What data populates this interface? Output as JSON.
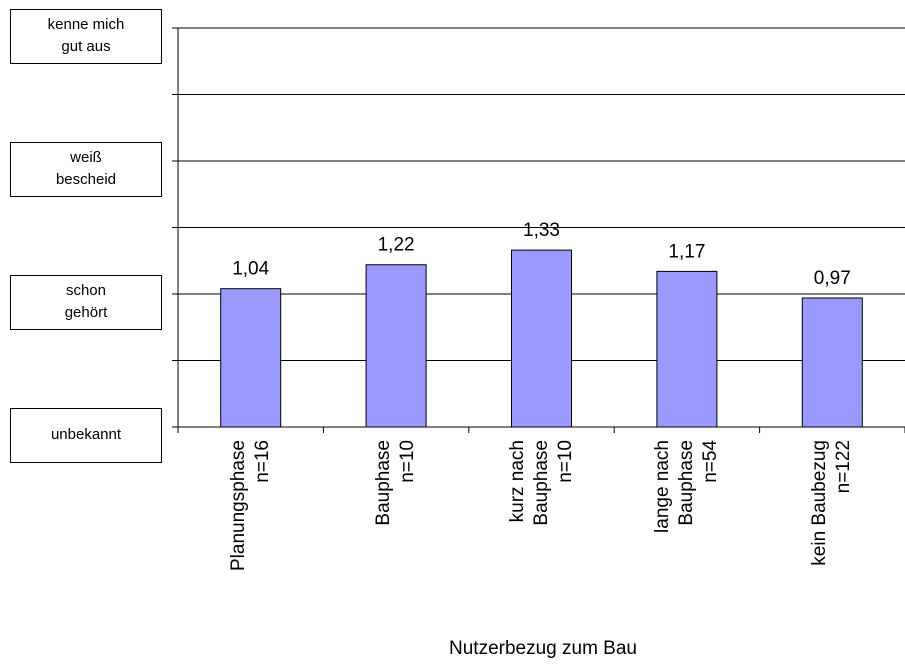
{
  "chart_data": {
    "type": "bar",
    "x_label": "Nutzerbezug zum Bau",
    "categories": [
      "Planungsphase\nn=16",
      "Bauphase\nn=10",
      "kurz nach\nBauphase\nn=10",
      "lange nach\nBauphase\nn=54",
      "kein Baubezug\nn=122"
    ],
    "values": [
      1.04,
      1.22,
      1.33,
      1.17,
      0.97
    ],
    "value_labels": [
      "1,04",
      "1,22",
      "1,33",
      "1,17",
      "0,97"
    ],
    "color": "#9999ff",
    "ylim": [
      0,
      3
    ],
    "yticks": [
      {
        "value": 0,
        "label": "unbekannt"
      },
      {
        "value": 1,
        "label": "schon\ngehört"
      },
      {
        "value": 2,
        "label": "weiß\nbescheid"
      },
      {
        "value": 3,
        "label": "kenne mich\ngut aus"
      }
    ],
    "minor_yticks": [
      0.5,
      1.5,
      2.5
    ],
    "grid": true
  }
}
